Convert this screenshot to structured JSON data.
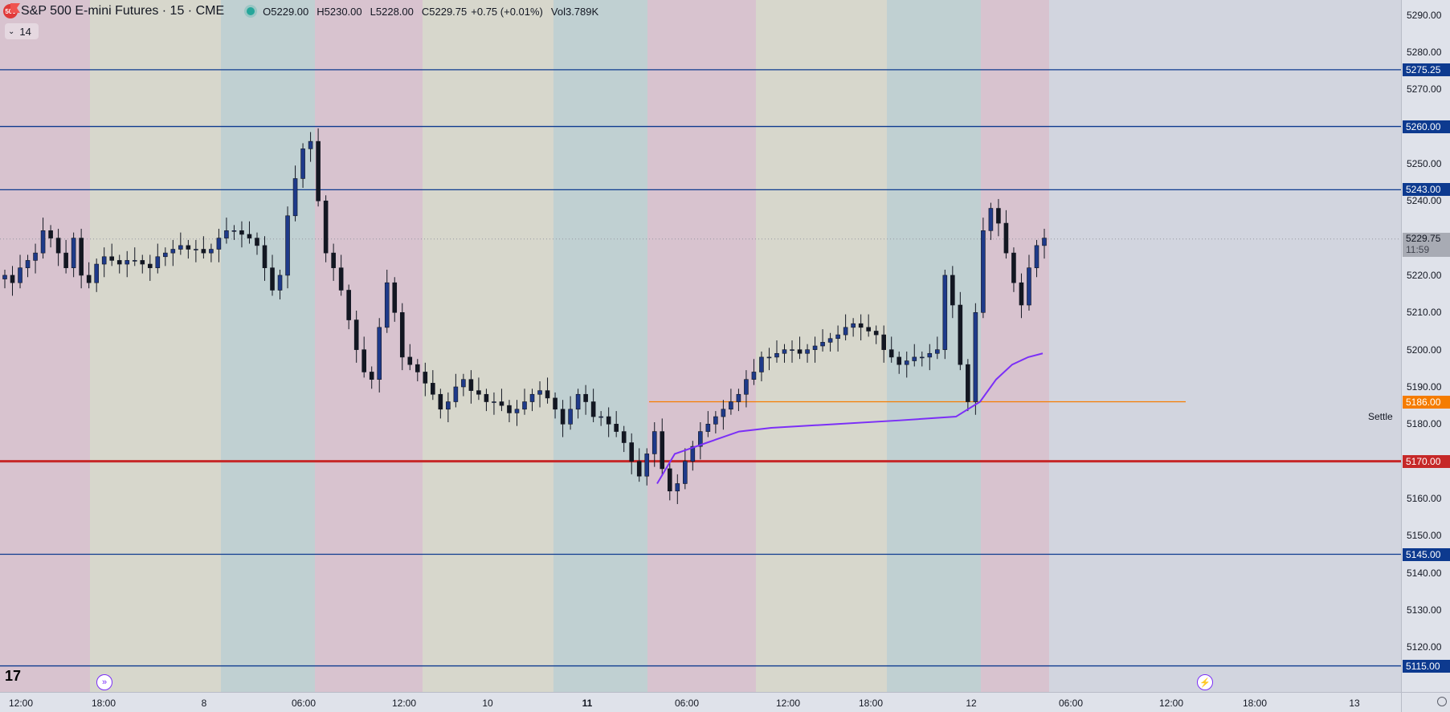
{
  "legend": {
    "symbol_badge": "500",
    "title": "S&P 500 E-mini Futures · 15 · CME",
    "open_key": "O",
    "open": "5229.00",
    "high_key": "H",
    "high": "5230.00",
    "low_key": "L",
    "low": "5228.00",
    "close_key": "C",
    "close": "5229.75",
    "change": "+0.75 (+0.01%)",
    "vol_key": "Vol",
    "volume": "3.789K"
  },
  "indicator": {
    "collapse_icon": "chevron-down-icon",
    "value": "14"
  },
  "price_axis": {
    "ticks": [
      "5290.00",
      "5280.00",
      "5270.00",
      "5250.00",
      "5240.00",
      "5220.00",
      "5210.00",
      "5200.00",
      "5190.00",
      "5180.00",
      "5160.00",
      "5150.00",
      "5140.00",
      "5130.00",
      "5120.00"
    ],
    "labels": [
      {
        "text": "5275.25",
        "color": "#0d3a8f"
      },
      {
        "text": "5260.00",
        "color": "#0d3a8f"
      },
      {
        "text": "5243.00",
        "color": "#0d3a8f"
      },
      {
        "text": "5186.00",
        "color": "#f57c00"
      },
      {
        "text": "5170.00",
        "color": "#c62828"
      },
      {
        "text": "5145.00",
        "color": "#0d3a8f"
      },
      {
        "text": "5115.00",
        "color": "#0d3a8f"
      }
    ],
    "current_price": "5229.75",
    "countdown": "11:59"
  },
  "time_axis": {
    "ticks": [
      {
        "text": "12:00",
        "bold": false
      },
      {
        "text": "18:00",
        "bold": false
      },
      {
        "text": "8",
        "bold": false
      },
      {
        "text": "06:00",
        "bold": false
      },
      {
        "text": "12:00",
        "bold": false
      },
      {
        "text": "10",
        "bold": false
      },
      {
        "text": "11",
        "bold": true
      },
      {
        "text": "06:00",
        "bold": false
      },
      {
        "text": "12:00",
        "bold": false
      },
      {
        "text": "18:00",
        "bold": false
      },
      {
        "text": "12",
        "bold": false
      },
      {
        "text": "06:00",
        "bold": false
      },
      {
        "text": "12:00",
        "bold": false
      },
      {
        "text": "18:00",
        "bold": false
      },
      {
        "text": "13",
        "bold": false
      }
    ]
  },
  "settle_label": "Settle",
  "logo": "17",
  "colors": {
    "level_line": "#0d3a8f",
    "support_line": "#c62828",
    "settle_line": "#f57c00",
    "vwap": "#7b2ff7",
    "up_candle": "#1e3a8a",
    "down_candle": "#131722",
    "red_candle": "#c62828",
    "session_pink": "#d8c3cf",
    "session_beige": "#d7d7cc",
    "session_teal": "#c0d0d2"
  },
  "chart_data": {
    "type": "candlestick",
    "title": "S&P 500 E-mini Futures · 15 · CME",
    "y_range": [
      5108,
      5294
    ],
    "horizontal_levels": [
      5275.25,
      5260.0,
      5243.0,
      5186.0,
      5170.0,
      5145.0,
      5115.0
    ],
    "settle": 5186.0,
    "last_price": 5229.75,
    "closes": [
      5220,
      5218,
      5222,
      5224,
      5226,
      5232,
      5230,
      5226,
      5222,
      5230,
      5220,
      5218,
      5223,
      5225,
      5224,
      5223,
      5224,
      5224,
      5223,
      5222,
      5225,
      5226,
      5227,
      5228,
      5227,
      5227,
      5226,
      5227,
      5230,
      5232,
      5232,
      5231,
      5230,
      5228,
      5222,
      5216,
      5220,
      5236,
      5246,
      5254,
      5256,
      5240,
      5226,
      5222,
      5216,
      5208,
      5200,
      5194,
      5192,
      5206,
      5218,
      5210,
      5198,
      5196,
      5194,
      5191,
      5188,
      5184,
      5186,
      5190,
      5192,
      5189,
      5188,
      5186,
      5186,
      5185,
      5183,
      5184,
      5186,
      5188,
      5189,
      5187,
      5184,
      5180,
      5184,
      5188,
      5186,
      5182,
      5182,
      5180,
      5178,
      5175,
      5170,
      5166,
      5172,
      5178,
      5168,
      5162,
      5164,
      5170,
      5174,
      5178,
      5180,
      5182,
      5184,
      5186,
      5188,
      5192,
      5194,
      5198,
      5198,
      5199,
      5200,
      5200,
      5199,
      5200,
      5201,
      5202,
      5203,
      5204,
      5206,
      5207,
      5206,
      5205,
      5204,
      5200,
      5198,
      5196,
      5197,
      5198,
      5198,
      5199,
      5200,
      5220,
      5212,
      5196,
      5186,
      5210,
      5232,
      5238,
      5234,
      5226,
      5218,
      5212,
      5222,
      5228,
      5230
    ]
  }
}
